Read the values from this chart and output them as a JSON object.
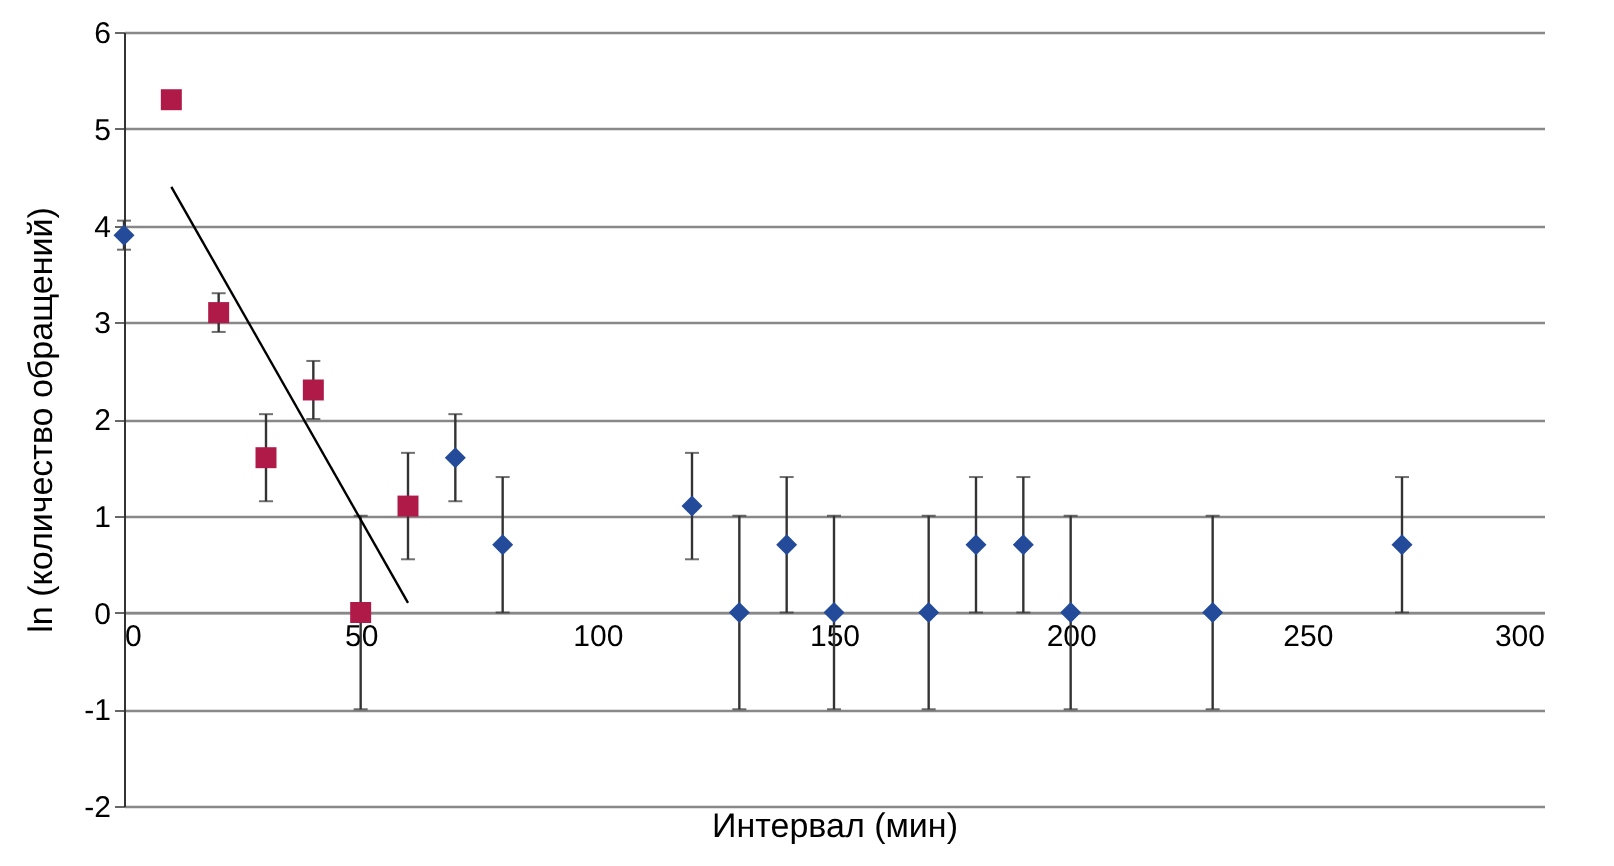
{
  "chart_data": {
    "type": "scatter",
    "xlabel": "Интервал (мин)",
    "ylabel": "ln (количество обращений)",
    "xlim": [
      0,
      300
    ],
    "xticks": [
      0,
      50,
      100,
      150,
      200,
      250,
      300
    ],
    "ylim": [
      -2,
      6
    ],
    "yticks": [
      -2,
      -1,
      0,
      1,
      2,
      3,
      4,
      5,
      6
    ],
    "grid": "y",
    "series": [
      {
        "type": "scatter",
        "marker": "diamond",
        "color": "#234b9a",
        "x": [
          0,
          70,
          80,
          120,
          130,
          140,
          150,
          170,
          180,
          190,
          200,
          230,
          270
        ],
        "values": [
          3.9,
          1.6,
          0.7,
          1.1,
          0,
          0.7,
          0,
          0,
          0.7,
          0.7,
          0,
          0,
          0.7
        ],
        "errors": [
          0.15,
          0.45,
          0.7,
          0.55,
          1,
          0.7,
          1,
          1,
          0.7,
          0.7,
          1,
          1,
          0.7
        ]
      },
      {
        "type": "scatter",
        "marker": "square",
        "color": "#b01a48",
        "x": [
          10,
          20,
          30,
          40,
          50,
          60
        ],
        "values": [
          5.3,
          3.1,
          1.6,
          2.3,
          0,
          1.1
        ],
        "errors": [
          null,
          0.2,
          0.45,
          0.3,
          1,
          0.55
        ]
      },
      {
        "type": "line",
        "color": "#000000",
        "x": [
          10,
          60
        ],
        "values": [
          4.4,
          0.1
        ]
      }
    ]
  }
}
